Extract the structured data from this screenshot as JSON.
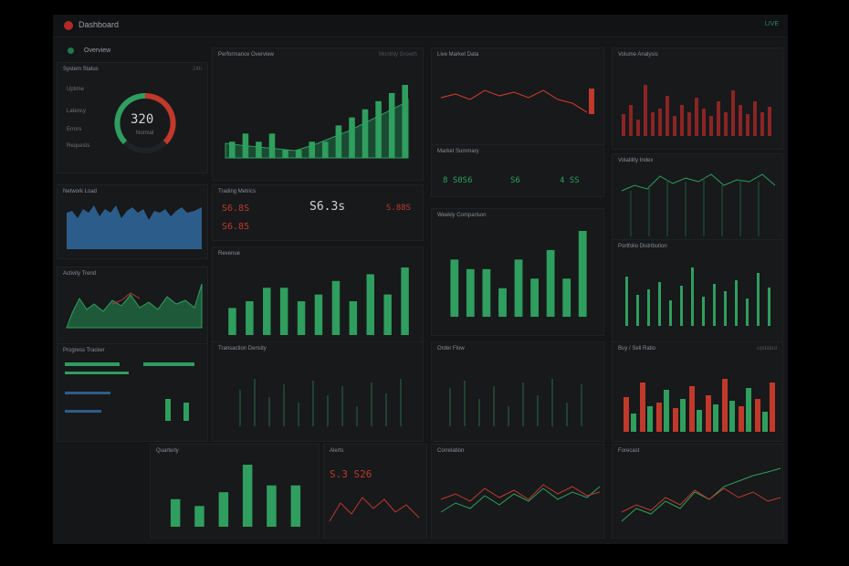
{
  "app": {
    "title": "Dashboard",
    "status": "LIVE",
    "section_title": "Overview"
  },
  "colors": {
    "green": "#2f9e5e",
    "red": "#c0392b",
    "blue": "#2c5d8a",
    "bg": "#141618"
  },
  "panels": {
    "gauge": {
      "title": "System Status",
      "value": "320",
      "sub": "Normal",
      "meta": "24h",
      "items": [
        "Uptime",
        "Latency",
        "Errors",
        "Requests"
      ]
    },
    "main_area": {
      "title": "Performance Overview",
      "meta": "Monthly Growth"
    },
    "live_price": {
      "title": "Live Market Data"
    },
    "red_bars": {
      "title": "Volume Analysis"
    },
    "mid_stats": {
      "title": "Trading Metrics",
      "value_center": "S6.3s",
      "value_left": "S6.8S",
      "value_right": "S.88S",
      "value_small": "S6.85"
    },
    "ticker": {
      "title": "Market Summary",
      "v1": "8 S0S6",
      "v2": "S6",
      "v3": "4 SS"
    },
    "blue_area": {
      "title": "Network Load"
    },
    "green_area": {
      "title": "Activity Trend"
    },
    "mid_bars": {
      "title": "Revenue"
    },
    "right_bars": {
      "title": "Portfolio Distribution"
    },
    "right_lines": {
      "title": "Volatility Index"
    },
    "center_bars": {
      "title": "Weekly Comparison"
    },
    "spikes_left": {
      "title": "Transaction Density"
    },
    "spikes_mid": {
      "title": "Order Flow"
    },
    "mixed": {
      "title": "Buy / Sell Ratio",
      "meta": "updated"
    },
    "progress": {
      "title": "Progress Tracker"
    },
    "small_bars": {
      "title": "Quarterly"
    },
    "red_line": {
      "title": "Alerts",
      "value": "S.3 S26"
    },
    "lines2": {
      "title": "Correlation"
    },
    "lines3": {
      "title": "Forecast"
    }
  },
  "chart_data": [
    {
      "type": "bar",
      "name": "main_area",
      "values": [
        2,
        3,
        2,
        3,
        1,
        1,
        2,
        2,
        4,
        5,
        6,
        7,
        8,
        9
      ]
    },
    {
      "type": "bar",
      "name": "mid_bars",
      "values": [
        4,
        5,
        7,
        7,
        5,
        6,
        8,
        5,
        9,
        6,
        10
      ]
    },
    {
      "type": "bar",
      "name": "center_bars",
      "values": [
        6,
        5,
        5,
        3,
        6,
        4,
        7,
        4,
        9
      ]
    },
    {
      "type": "bar",
      "name": "small_bars",
      "values": [
        4,
        3,
        5,
        9,
        6,
        6
      ]
    }
  ]
}
